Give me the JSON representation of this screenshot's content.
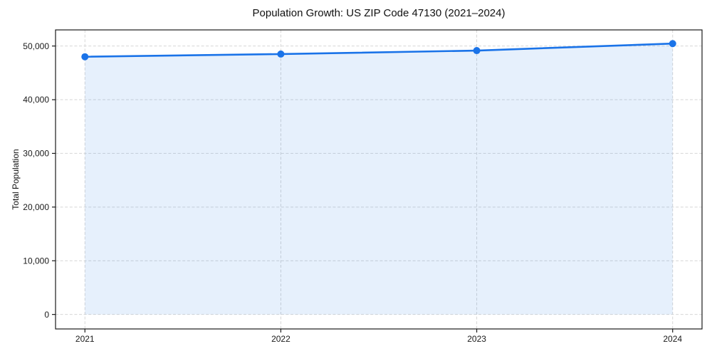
{
  "chart_data": {
    "type": "line",
    "title": "Population Growth: US ZIP Code 47130 (2021–2024)",
    "xlabel": "",
    "ylabel": "Total Population",
    "x": [
      2021,
      2022,
      2023,
      2024
    ],
    "series": [
      {
        "name": "Total Population",
        "values": [
          48000,
          48500,
          49150,
          50450
        ]
      }
    ],
    "area_fill_to_baseline": true,
    "area_baseline": 0,
    "xlim": [
      2020.85,
      2024.15
    ],
    "ylim": [
      -2700,
      53000
    ],
    "xticks": [
      2021,
      2022,
      2023,
      2024
    ],
    "xtick_labels": [
      "2021",
      "2022",
      "2023",
      "2024"
    ],
    "yticks": [
      0,
      10000,
      20000,
      30000,
      40000,
      50000
    ],
    "ytick_labels": [
      "0",
      "10,000",
      "20,000",
      "30,000",
      "40,000",
      "50,000"
    ],
    "grid": true,
    "grid_style": "dashed",
    "legend": false,
    "marker": "circle",
    "colors": {
      "line": "#1a73e8",
      "marker": "#1a73e8",
      "fill": "rgba(26,115,232,0.11)",
      "grid": "#d6d6d6",
      "spine": "#1a1a1a",
      "text": "#111111",
      "background": "#ffffff"
    }
  }
}
